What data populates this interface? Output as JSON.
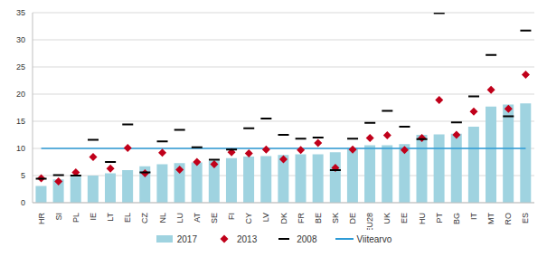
{
  "chart_data": {
    "type": "bar",
    "categories": [
      "HR",
      "SI",
      "PL",
      "IE",
      "LT",
      "EL",
      "CZ",
      "NL",
      "LU",
      "AT",
      "SE",
      "FI",
      "CY",
      "LV",
      "DK",
      "FR",
      "BE",
      "SK",
      "DE",
      "EU28",
      "UK",
      "EE",
      "HU",
      "PT",
      "BG",
      "IT",
      "MT",
      "RO",
      "ES"
    ],
    "series": [
      {
        "name": "2017",
        "type": "bar",
        "color": "#9fd3e0",
        "values": [
          3.1,
          4.3,
          4.8,
          5.0,
          5.4,
          6.0,
          6.7,
          7.1,
          7.3,
          7.4,
          7.7,
          8.2,
          8.5,
          8.6,
          8.8,
          8.9,
          8.9,
          9.3,
          10.1,
          10.6,
          10.6,
          10.8,
          12.5,
          12.6,
          12.7,
          14.0,
          17.7,
          18.1,
          18.3
        ]
      },
      {
        "name": "2013",
        "type": "scatter",
        "marker": "diamond",
        "color": "#c0001a",
        "values": [
          4.5,
          3.9,
          5.6,
          8.4,
          6.3,
          10.1,
          5.4,
          9.2,
          6.1,
          7.5,
          7.1,
          9.3,
          9.1,
          9.8,
          8.0,
          9.7,
          11.0,
          6.4,
          9.8,
          11.9,
          12.4,
          9.7,
          11.9,
          18.9,
          12.5,
          16.8,
          20.8,
          17.3,
          23.6
        ]
      },
      {
        "name": "2008",
        "type": "scatter",
        "marker": "dash",
        "color": "#000000",
        "values": [
          4.4,
          5.1,
          5.0,
          11.6,
          7.5,
          14.4,
          5.6,
          11.3,
          13.4,
          10.2,
          7.9,
          9.8,
          13.7,
          15.5,
          12.5,
          11.8,
          12.0,
          6.0,
          11.8,
          14.7,
          16.9,
          14.0,
          11.7,
          34.9,
          14.8,
          19.6,
          27.2,
          15.9,
          31.7
        ]
      },
      {
        "name": "Viitearvo",
        "type": "line",
        "color": "#2e9bd6",
        "values": [
          10,
          10,
          10,
          10,
          10,
          10,
          10,
          10,
          10,
          10,
          10,
          10,
          10,
          10,
          10,
          10,
          10,
          10,
          10,
          10,
          10,
          10,
          10,
          10,
          10,
          10,
          10,
          10,
          10
        ]
      }
    ],
    "ylim": [
      0,
      35
    ],
    "yticks": [
      0,
      5,
      10,
      15,
      20,
      25,
      30,
      35
    ],
    "grid": true,
    "legend": "bottom"
  }
}
